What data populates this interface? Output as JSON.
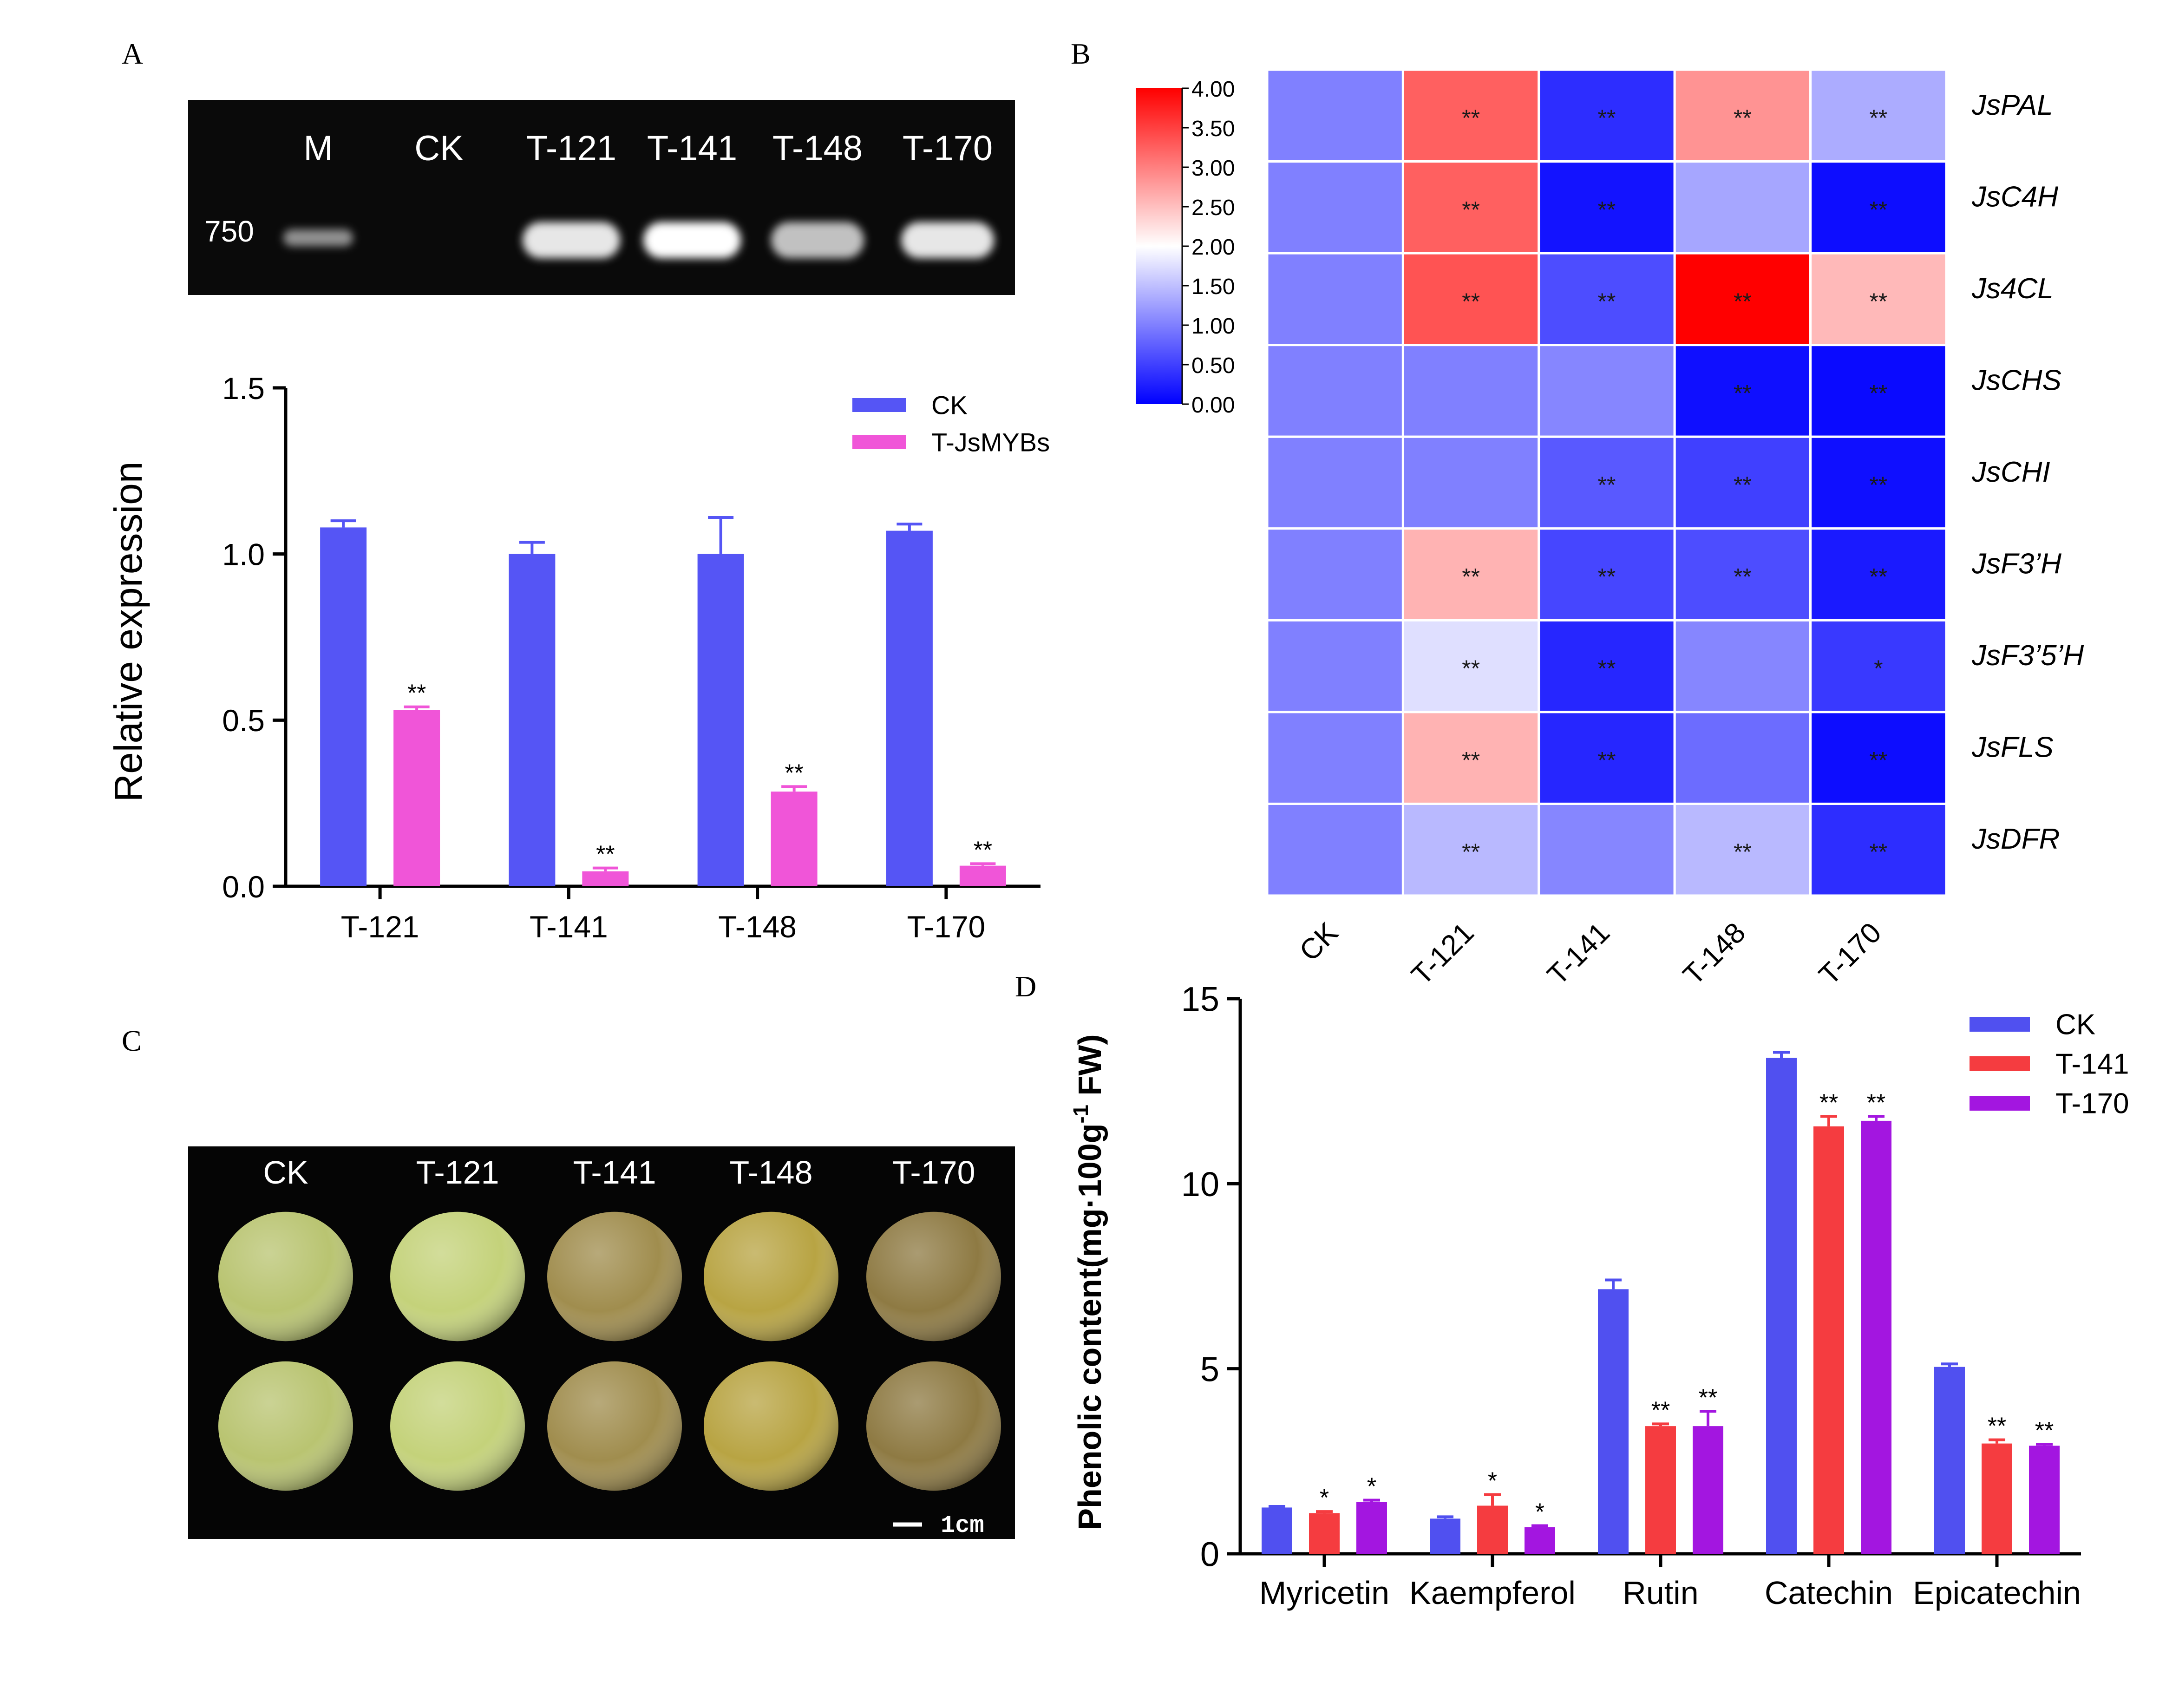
{
  "panels": {
    "A": {
      "letter": "A"
    },
    "B": {
      "letter": "B"
    },
    "C": {
      "letter": "C"
    },
    "D": {
      "letter": "D"
    }
  },
  "gel": {
    "marker_size": "750",
    "lane_labels": [
      "M",
      "CK",
      "T-121",
      "T-141",
      "T-148",
      "T-170"
    ],
    "band_intensity": [
      0.55,
      0.0,
      0.9,
      1.0,
      0.75,
      0.9
    ],
    "background_color": "#0a0a0a"
  },
  "fruit_photo": {
    "column_labels": [
      "CK",
      "T-121",
      "T-141",
      "T-148",
      "T-170"
    ],
    "scale_bar_label": "1cm",
    "fruit_colors": [
      "#b9c471",
      "#c4d27a",
      "#a08d4e",
      "#b8a443",
      "#8e7a43"
    ],
    "background_color": "#050505"
  },
  "chart_data": [
    {
      "id": "A-bar",
      "type": "bar",
      "title": "",
      "xlabel": "",
      "ylabel": "Relative expression",
      "categories": [
        "T-121",
        "T-141",
        "T-148",
        "T-170"
      ],
      "ylim": [
        0,
        1.5
      ],
      "yticks": [
        0.0,
        0.5,
        1.0,
        1.5
      ],
      "ytick_labels": [
        "0.0",
        "0.5",
        "1.0",
        "1.5"
      ],
      "series": [
        {
          "name": "CK",
          "color": "#5555f5",
          "values": [
            1.08,
            1.0,
            1.0,
            1.07
          ],
          "errors": [
            0.02,
            0.035,
            0.11,
            0.02
          ],
          "sig": [
            "",
            "",
            "",
            ""
          ]
        },
        {
          "name": "T-JsMYBs",
          "color": "#f055d8",
          "values": [
            0.53,
            0.045,
            0.285,
            0.062
          ],
          "errors": [
            0.01,
            0.01,
            0.015,
            0.006
          ],
          "sig": [
            "**",
            "**",
            "**",
            "**"
          ]
        }
      ],
      "legend_position": "top-right"
    },
    {
      "id": "B-heatmap",
      "type": "heatmap",
      "columns": [
        "CK",
        "T-121",
        "T-141",
        "T-148",
        "T-170"
      ],
      "rows": [
        "JsPAL",
        "JsC4H",
        "Js4CL",
        "JsCHS",
        "JsCHI",
        "JsF3’H",
        "JsF3’5’H",
        "JsFLS",
        "JsDFR"
      ],
      "values": [
        [
          1.0,
          3.25,
          0.35,
          2.85,
          1.35
        ],
        [
          1.0,
          3.25,
          0.15,
          1.3,
          0.1
        ],
        [
          1.0,
          3.35,
          0.6,
          4.0,
          2.55
        ],
        [
          1.0,
          1.0,
          1.05,
          0.12,
          0.08
        ],
        [
          1.0,
          1.0,
          0.7,
          0.5,
          0.12
        ],
        [
          1.0,
          2.6,
          0.55,
          0.6,
          0.2
        ],
        [
          1.0,
          1.75,
          0.3,
          1.05,
          0.45
        ],
        [
          1.0,
          2.6,
          0.3,
          0.85,
          0.1
        ],
        [
          1.0,
          1.45,
          1.05,
          1.45,
          0.35
        ]
      ],
      "significance": [
        [
          "",
          "**",
          "**",
          "**",
          "**"
        ],
        [
          "",
          "**",
          "**",
          "",
          "**"
        ],
        [
          "",
          "**",
          "**",
          "**",
          "**"
        ],
        [
          "",
          "",
          "",
          "**",
          "**"
        ],
        [
          "",
          "",
          "**",
          "**",
          "**"
        ],
        [
          "",
          "**",
          "**",
          "**",
          "**"
        ],
        [
          "",
          "**",
          "**",
          "",
          "*"
        ],
        [
          "",
          "**",
          "**",
          "",
          "**"
        ],
        [
          "",
          "**",
          "",
          "**",
          "**"
        ]
      ],
      "colorbar": {
        "min": 0.0,
        "max": 4.0,
        "mid": 2.0,
        "tick_labels": [
          "4.00",
          "3.50",
          "3.00",
          "2.50",
          "2.00",
          "1.50",
          "1.00",
          "0.50",
          "0.00"
        ],
        "tick_values": [
          4.0,
          3.5,
          3.0,
          2.5,
          2.0,
          1.5,
          1.0,
          0.5,
          0.0
        ],
        "low_color": "#0000ff",
        "mid_color": "#ffffff",
        "high_color": "#ff0000"
      }
    },
    {
      "id": "D-bar",
      "type": "bar",
      "title": "",
      "xlabel": "",
      "ylabel": "Phenolic content(mg·100g",
      "ylabel_sup": "-1",
      "ylabel_tail": " FW)",
      "categories": [
        "Myricetin",
        "Kaempferol",
        "Rutin",
        "Catechin",
        "Epicatechin"
      ],
      "ylim": [
        0,
        15
      ],
      "yticks": [
        0,
        5,
        10,
        15
      ],
      "ytick_labels": [
        "0",
        "5",
        "10",
        "15"
      ],
      "series": [
        {
          "name": "CK",
          "color": "#5050f0",
          "values": [
            1.25,
            0.95,
            7.15,
            13.4,
            5.05
          ],
          "errors": [
            0.03,
            0.05,
            0.25,
            0.15,
            0.08
          ],
          "sig": [
            "",
            "",
            "",
            "",
            ""
          ]
        },
        {
          "name": "T-141",
          "color": "#f53c40",
          "values": [
            1.1,
            1.3,
            3.45,
            11.55,
            2.98
          ],
          "errors": [
            0.04,
            0.3,
            0.06,
            0.27,
            0.1
          ],
          "sig": [
            "*",
            "*",
            "**",
            "**",
            "**"
          ]
        },
        {
          "name": "T-170",
          "color": "#a316e0",
          "values": [
            1.4,
            0.72,
            3.45,
            11.7,
            2.92
          ],
          "errors": [
            0.05,
            0.04,
            0.4,
            0.12,
            0.04
          ],
          "sig": [
            "*",
            "*",
            "**",
            "**",
            "**"
          ]
        }
      ],
      "legend_position": "top-right"
    }
  ]
}
